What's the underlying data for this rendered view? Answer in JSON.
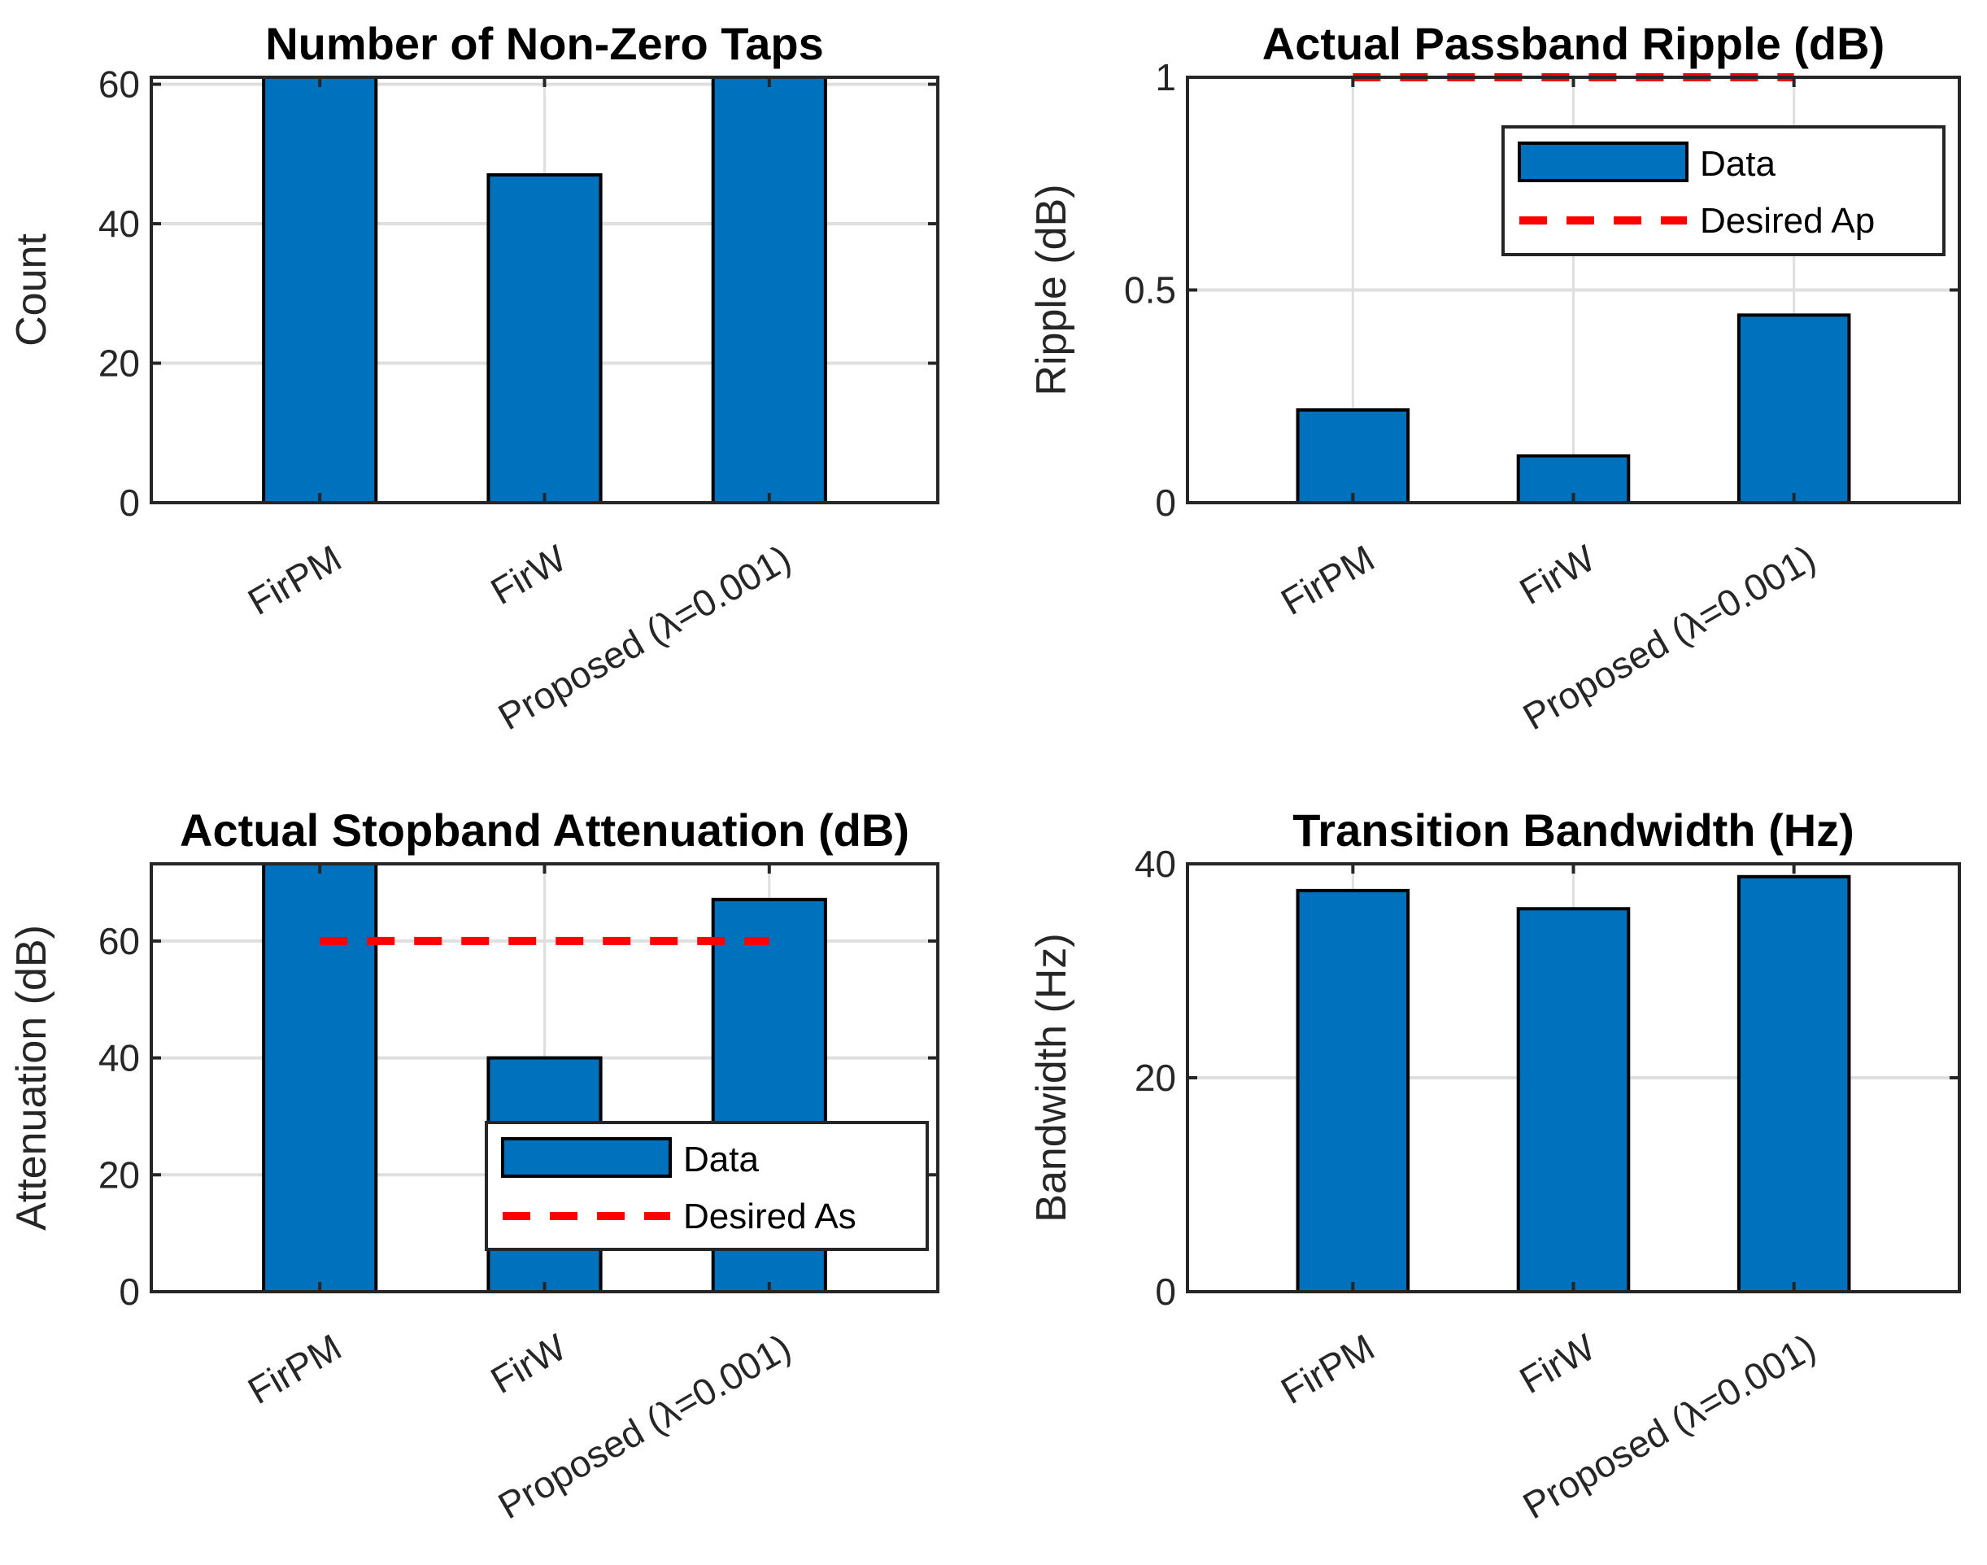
{
  "chart_data": [
    {
      "type": "bar",
      "title": "Number of Non-Zero Taps",
      "xlabel": "",
      "ylabel": "Count",
      "categories": [
        "FirPM",
        "FirW",
        "Proposed (λ=0.001)"
      ],
      "values": [
        61,
        47,
        61
      ],
      "ylim": [
        0,
        61
      ],
      "yticks": [
        "0",
        "20",
        "40",
        "60"
      ],
      "ytick_values": [
        0,
        20,
        40,
        60
      ],
      "grid": true,
      "bar_color": "#0072BD"
    },
    {
      "type": "bar",
      "title": "Actual Passband Ripple (dB)",
      "xlabel": "",
      "ylabel": "Ripple (dB)",
      "categories": [
        "FirPM",
        "FirW",
        "Proposed (λ=0.001)"
      ],
      "values": [
        0.218,
        0.11,
        0.441
      ],
      "ylim": [
        0,
        1
      ],
      "yticks": [
        "0",
        "0.5",
        "1"
      ],
      "ytick_values": [
        0,
        0.5,
        1
      ],
      "grid": true,
      "bar_color": "#0072BD",
      "reference_line": {
        "name": "Desired Ap",
        "value": 1,
        "x_range": [
          1,
          3
        ],
        "color": "#FF0000",
        "style": "dashed"
      },
      "legend": {
        "entries": [
          "Data",
          "Desired Ap"
        ],
        "placement": "top-right"
      }
    },
    {
      "type": "bar",
      "title": "Actual Stopband Attenuation (dB)",
      "xlabel": "",
      "ylabel": "Attenuation (dB)",
      "categories": [
        "FirPM",
        "FirW",
        "Proposed (λ=0.001)"
      ],
      "values": [
        73.2,
        40,
        67.1
      ],
      "ylim": [
        0,
        73.2
      ],
      "yticks": [
        "0",
        "20",
        "40",
        "60"
      ],
      "ytick_values": [
        0,
        20,
        40,
        60
      ],
      "grid": true,
      "bar_color": "#0072BD",
      "reference_line": {
        "name": "Desired As",
        "value": 60,
        "x_range": [
          1,
          3
        ],
        "color": "#FF0000",
        "style": "dashed"
      },
      "legend": {
        "entries": [
          "Data",
          "Desired As"
        ],
        "placement": "bottom-right"
      }
    },
    {
      "type": "bar",
      "title": "Transition Bandwidth (Hz)",
      "xlabel": "",
      "ylabel": "Bandwidth (Hz)",
      "categories": [
        "FirPM",
        "FirW",
        "Proposed (λ=0.001)"
      ],
      "values": [
        37.5,
        35.8,
        38.8
      ],
      "ylim": [
        0,
        40
      ],
      "yticks": [
        "0",
        "20",
        "40"
      ],
      "ytick_values": [
        0,
        20,
        40
      ],
      "grid": true,
      "bar_color": "#0072BD"
    }
  ]
}
